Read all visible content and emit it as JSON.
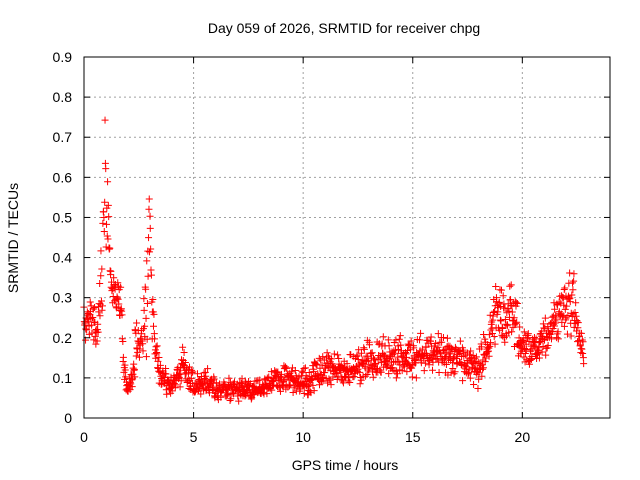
{
  "chart_data": {
    "type": "scatter",
    "title": "Day 059 of 2026, SRMTID for receiver chpg",
    "xlabel": "GPS time / hours",
    "ylabel": "SRMTID / TECUs",
    "xlim": [
      0,
      24
    ],
    "ylim": [
      0,
      0.9
    ],
    "xticks": [
      0,
      5,
      10,
      15,
      20
    ],
    "yticks": [
      0,
      0.1,
      0.2,
      0.3,
      0.4,
      0.5,
      0.6,
      0.7,
      0.8,
      0.9
    ],
    "grid": true,
    "marker": "plus",
    "color": "#ff0000",
    "series": [
      {
        "name": "SRMTID",
        "profile_hours": [
          0.0,
          0.3,
          0.6,
          0.8,
          0.95,
          1.05,
          1.15,
          1.3,
          1.5,
          1.7,
          1.85,
          2.0,
          2.2,
          2.4,
          2.5,
          2.7,
          2.9,
          3.0,
          3.1,
          3.3,
          3.6,
          4.0,
          4.5,
          5.0,
          5.5,
          6.0,
          7.0,
          8.0,
          9.0,
          10.0,
          11.0,
          12.0,
          13.0,
          14.0,
          15.0,
          16.0,
          17.0,
          18.0,
          18.5,
          18.7,
          19.0,
          19.5,
          20.0,
          20.5,
          21.0,
          21.5,
          22.0,
          22.3,
          22.6,
          22.8
        ],
        "profile_median": [
          0.24,
          0.25,
          0.22,
          0.35,
          0.6,
          0.55,
          0.45,
          0.32,
          0.3,
          0.28,
          0.1,
          0.07,
          0.1,
          0.2,
          0.18,
          0.2,
          0.35,
          0.5,
          0.3,
          0.14,
          0.1,
          0.08,
          0.13,
          0.08,
          0.1,
          0.07,
          0.07,
          0.07,
          0.1,
          0.09,
          0.12,
          0.12,
          0.14,
          0.15,
          0.15,
          0.17,
          0.15,
          0.12,
          0.18,
          0.28,
          0.25,
          0.27,
          0.18,
          0.17,
          0.2,
          0.25,
          0.28,
          0.3,
          0.2,
          0.15
        ],
        "profile_spread": [
          0.05,
          0.06,
          0.05,
          0.12,
          0.28,
          0.2,
          0.1,
          0.05,
          0.05,
          0.05,
          0.04,
          0.03,
          0.04,
          0.1,
          0.05,
          0.05,
          0.25,
          0.12,
          0.1,
          0.05,
          0.04,
          0.03,
          0.05,
          0.04,
          0.04,
          0.03,
          0.03,
          0.03,
          0.04,
          0.04,
          0.05,
          0.05,
          0.06,
          0.06,
          0.06,
          0.06,
          0.06,
          0.05,
          0.08,
          0.12,
          0.1,
          0.08,
          0.06,
          0.05,
          0.06,
          0.07,
          0.1,
          0.1,
          0.06,
          0.04
        ],
        "samples": 1380,
        "x_range": [
          0.0,
          22.8
        ]
      }
    ]
  }
}
